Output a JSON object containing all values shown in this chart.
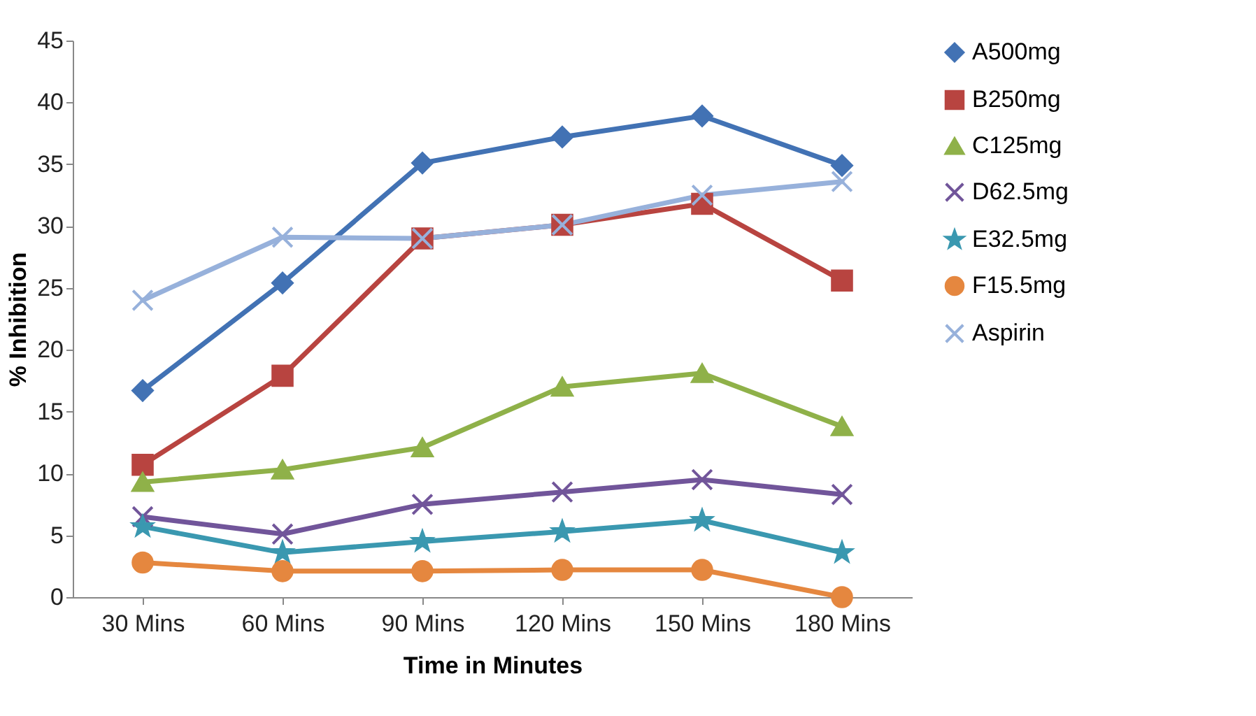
{
  "chart_data": {
    "type": "line",
    "xlabel": "Time in Minutes",
    "ylabel": "% Inhibition",
    "categories": [
      "30 Mins",
      "60 Mins",
      "90 Mins",
      "120 Mins",
      "150 Mins",
      "180 Mins"
    ],
    "ylim": [
      0,
      45
    ],
    "yticks": [
      0,
      5,
      10,
      15,
      20,
      25,
      30,
      35,
      40,
      45
    ],
    "grid": false,
    "legend": "right",
    "line_style": "solid",
    "series": [
      {
        "name": "A500mg",
        "color": "#4272b4",
        "marker": "diamond",
        "values": [
          16.7,
          25.4,
          35.1,
          37.2,
          38.9,
          34.9
        ]
      },
      {
        "name": "B250mg",
        "color": "#b84440",
        "marker": "square",
        "values": [
          10.7,
          17.9,
          29.0,
          30.1,
          31.8,
          25.6
        ]
      },
      {
        "name": "C125mg",
        "color": "#8fb149",
        "marker": "triangle",
        "values": [
          9.3,
          10.3,
          12.1,
          17.0,
          18.1,
          13.8
        ]
      },
      {
        "name": "D62.5mg",
        "color": "#71559a",
        "marker": "cross",
        "values": [
          6.5,
          5.1,
          7.5,
          8.5,
          9.5,
          8.3
        ]
      },
      {
        "name": "E32.5mg",
        "color": "#3a98b0",
        "marker": "star",
        "values": [
          5.7,
          3.6,
          4.5,
          5.3,
          6.2,
          3.6
        ]
      },
      {
        "name": "F15.5mg",
        "color": "#e5873f",
        "marker": "circle",
        "values": [
          2.8,
          2.1,
          2.1,
          2.2,
          2.2,
          0
        ]
      },
      {
        "name": "Aspirin",
        "color": "#97b1db",
        "marker": "cross",
        "values": [
          24.0,
          29.1,
          29.0,
          30.1,
          32.5,
          33.6
        ]
      }
    ]
  }
}
